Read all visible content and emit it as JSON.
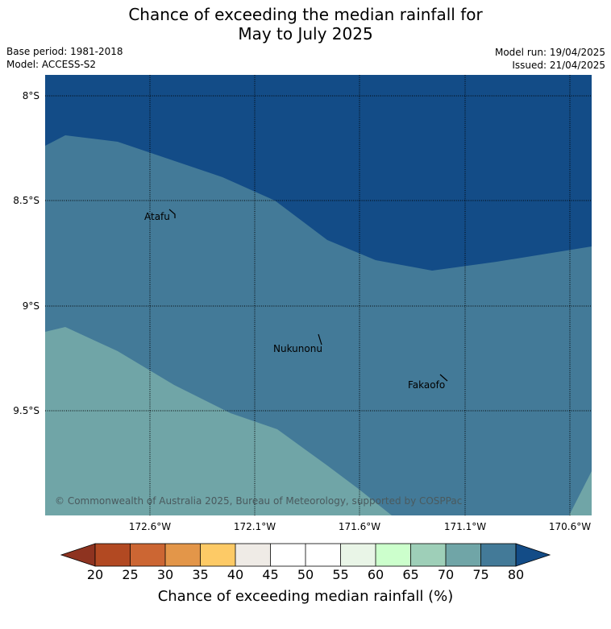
{
  "title": {
    "line1": "Chance of exceeding the median rainfall for",
    "line2": "May to July 2025"
  },
  "meta": {
    "base_period": "Base period: 1981-2018",
    "model": "Model: ACCESS-S2",
    "model_run": "Model run: 19/04/2025",
    "issued": "Issued: 21/04/2025"
  },
  "map": {
    "latitude_labels": [
      "8°S",
      "8.5°S",
      "9°S",
      "9.5°S"
    ],
    "longitude_labels": [
      "172.6°W",
      "172.1°W",
      "171.6°W",
      "171.1°W",
      "170.6°W"
    ],
    "places": [
      "Atafu",
      "Nukunonu",
      "Fakaofo"
    ],
    "copyright": "© Commonwealth of Australia 2025, Bureau of Meteorology, supported by COSPPac",
    "colors": {
      "band_80_plus": "#134c87",
      "band_75_80": "#437a98",
      "band_70_75": "#70a5a7"
    }
  },
  "colorbar": {
    "ticks": [
      "20",
      "25",
      "30",
      "35",
      "40",
      "45",
      "50",
      "55",
      "60",
      "65",
      "70",
      "75",
      "80"
    ],
    "label": "Chance of exceeding median rainfall (%)",
    "colors": [
      "#8e3320",
      "#b24922",
      "#cc6633",
      "#e39649",
      "#fdca66",
      "#efebe6",
      "#ffffff",
      "#ffffff",
      "#e9f5e7",
      "#ccffcc",
      "#9ecfb8",
      "#70a5a7",
      "#437a98",
      "#134c87"
    ]
  }
}
